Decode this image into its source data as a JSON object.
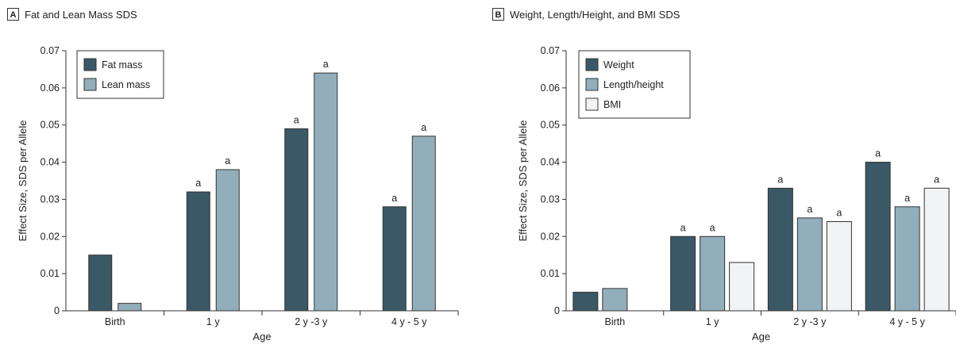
{
  "chart_data": [
    {
      "type": "bar",
      "panel": "A",
      "title": "Fat and Lean Mass SDS",
      "xlabel": "Age",
      "ylabel": "Effect Size, SDS per Allele",
      "ylim": [
        0,
        0.07
      ],
      "yticks": [
        "0",
        "0.01",
        "0.02",
        "0.03",
        "0.04",
        "0.05",
        "0.06",
        "0.07"
      ],
      "categories": [
        "Birth",
        "1 y",
        "2 y -3 y",
        "4 y - 5 y"
      ],
      "legend_position": "top-left",
      "series": [
        {
          "name": "Fat mass",
          "color": "#3a5866",
          "values": [
            0.015,
            0.032,
            0.049,
            0.028
          ],
          "annotations": [
            "",
            "a",
            "a",
            "a"
          ]
        },
        {
          "name": "Lean mass",
          "color": "#93aebb",
          "values": [
            0.002,
            0.038,
            0.064,
            0.047
          ],
          "annotations": [
            "",
            "a",
            "a",
            "a"
          ]
        }
      ]
    },
    {
      "type": "bar",
      "panel": "B",
      "title": "Weight, Length/Height, and BMI SDS",
      "xlabel": "Age",
      "ylabel": "Effect Size, SDS per Allele",
      "ylim": [
        0,
        0.07
      ],
      "yticks": [
        "0",
        "0.01",
        "0.02",
        "0.03",
        "0.04",
        "0.05",
        "0.06",
        "0.07"
      ],
      "categories": [
        "Birth",
        "1 y",
        "2 y -3 y",
        "4 y - 5 y"
      ],
      "legend_position": "top-left",
      "series": [
        {
          "name": "Weight",
          "color": "#3a5866",
          "values": [
            0.005,
            0.02,
            0.033,
            0.04
          ],
          "annotations": [
            "",
            "a",
            "a",
            "a"
          ]
        },
        {
          "name": "Length/height",
          "color": "#93aebb",
          "values": [
            0.006,
            0.02,
            0.025,
            0.028
          ],
          "annotations": [
            "",
            "a",
            "a",
            "a"
          ]
        },
        {
          "name": "BMI",
          "color": "#f1f3f5",
          "values": [
            null,
            0.013,
            0.024,
            0.033
          ],
          "annotations": [
            "",
            "",
            "a",
            "a"
          ]
        }
      ]
    }
  ]
}
